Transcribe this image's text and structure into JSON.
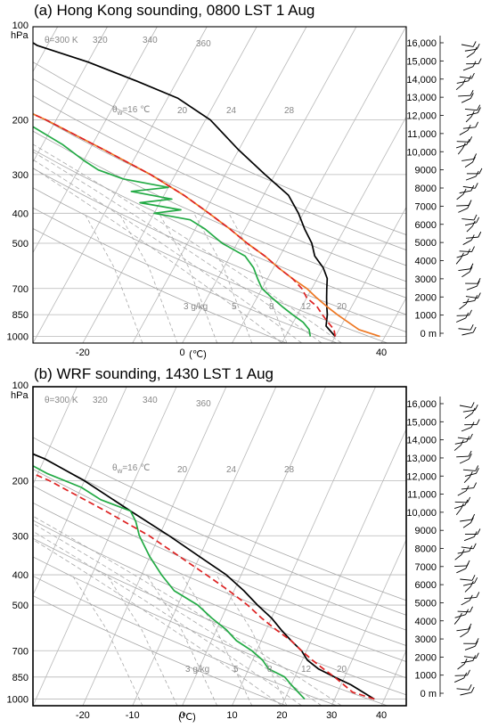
{
  "chart_data": [
    {
      "type": "line",
      "title": "(a) Hong Kong sounding, 0800 LST 1 Aug",
      "pressure_unit": "hPa",
      "xlabel": "(℃)",
      "pressure_ticks": [
        100,
        200,
        300,
        400,
        500,
        700,
        850,
        1000
      ],
      "temperature_ticks": [
        -20,
        0,
        40
      ],
      "xlim": [
        -30,
        45
      ],
      "ylim": [
        1050,
        100
      ],
      "skewed_isotherms": true,
      "grid": true,
      "height_axis": {
        "unit": "m",
        "ticks": [
          "16,000",
          "15,000",
          "14,000",
          "13,000",
          "12,000",
          "11,000",
          "10,000",
          "9000",
          "8000",
          "7000",
          "6000",
          "5000",
          "4000",
          "3000",
          "2000",
          "1000",
          "0 m"
        ]
      },
      "isoline_labels": {
        "dry_adiabats": [
          "θ=300 K",
          "320",
          "340",
          "360"
        ],
        "moist_adiabats_prefix": "θ",
        "moist_adiabats_sub": "w",
        "moist_adiabats": [
          "=16 ℃",
          "20",
          "24",
          "28"
        ],
        "mixing_ratio": [
          "3 g/kg",
          "5",
          "8",
          "12",
          "20"
        ]
      },
      "series": [
        {
          "color": "#000000",
          "style": "solid",
          "points": [
            [
              30,
              1000
            ],
            [
              27,
              925
            ],
            [
              26,
              850
            ],
            [
              25,
              800
            ],
            [
              24,
              750
            ],
            [
              23,
              700
            ],
            [
              22,
              650
            ],
            [
              20,
              600
            ],
            [
              17,
              550
            ],
            [
              15,
              500
            ],
            [
              12,
              450
            ],
            [
              9,
              400
            ],
            [
              5,
              350
            ],
            [
              -2,
              300
            ],
            [
              -10,
              250
            ],
            [
              -19,
              200
            ],
            [
              -28,
              170
            ],
            [
              -38,
              150
            ],
            [
              -50,
              130
            ],
            [
              -62,
              115
            ],
            [
              -70,
              100
            ]
          ]
        },
        {
          "color": "#22aa44",
          "style": "solid",
          "points": [
            [
              25,
              1000
            ],
            [
              24,
              950
            ],
            [
              22,
              900
            ],
            [
              19,
              850
            ],
            [
              16,
              800
            ],
            [
              13,
              750
            ],
            [
              10,
              700
            ],
            [
              8,
              650
            ],
            [
              6,
              600
            ],
            [
              3,
              550
            ],
            [
              -3,
              500
            ],
            [
              -8,
              450
            ],
            [
              -12,
              420
            ],
            [
              -20,
              400
            ],
            [
              -15,
              390
            ],
            [
              -24,
              370
            ],
            [
              -18,
              360
            ],
            [
              -27,
              340
            ],
            [
              -20,
              330
            ],
            [
              -30,
              310
            ],
            [
              -36,
              290
            ],
            [
              -40,
              270
            ],
            [
              -46,
              240
            ],
            [
              -54,
              210
            ],
            [
              -58,
              190
            ],
            [
              -63,
              170
            ],
            [
              -68,
              150
            ],
            [
              -72,
              135
            ],
            [
              -70,
              120
            ],
            [
              -78,
              110
            ],
            [
              -76,
              100
            ]
          ]
        },
        {
          "color": "#ee7722",
          "style": "solid",
          "points": [
            [
              39,
              1000
            ],
            [
              34,
              950
            ],
            [
              28,
              850
            ],
            [
              25,
              800
            ],
            [
              22,
              750
            ],
            [
              19,
              700
            ],
            [
              15,
              650
            ],
            [
              11,
              600
            ],
            [
              7,
              550
            ],
            [
              2,
              500
            ],
            [
              -3,
              450
            ],
            [
              -9,
              400
            ],
            [
              -16,
              350
            ],
            [
              -25,
              300
            ],
            [
              -37,
              250
            ],
            [
              -52,
              200
            ],
            [
              -62,
              175
            ],
            [
              -72,
              155
            ],
            [
              -80,
              140
            ]
          ]
        },
        {
          "color": "#dd2222",
          "style": "dashed",
          "points": [
            [
              30,
              1000
            ],
            [
              29,
              950
            ],
            [
              27,
              900
            ],
            [
              25,
              850
            ],
            [
              23,
              800
            ],
            [
              20,
              750
            ],
            [
              18,
              700
            ],
            [
              15,
              650
            ],
            [
              11,
              600
            ],
            [
              7,
              550
            ],
            [
              2,
              500
            ],
            [
              -3,
              450
            ],
            [
              -9,
              400
            ],
            [
              -16,
              350
            ],
            [
              -25,
              300
            ],
            [
              -37,
              250
            ],
            [
              -52,
              200
            ],
            [
              -62,
              175
            ],
            [
              -72,
              155
            ],
            [
              -80,
              140
            ]
          ]
        }
      ]
    },
    {
      "type": "line",
      "title": "(b) WRF sounding, 1430 LST 1 Aug",
      "pressure_unit": "hPa",
      "xlabel": "(℃)",
      "pressure_ticks": [
        100,
        200,
        300,
        400,
        500,
        700,
        850,
        1000
      ],
      "temperature_ticks": [
        -20,
        -10,
        0,
        10,
        20,
        30,
        40
      ],
      "xlim": [
        -30,
        45
      ],
      "ylim": [
        1050,
        100
      ],
      "skewed_isotherms": true,
      "grid": true,
      "height_axis": {
        "unit": "m",
        "ticks": [
          "16,000",
          "15,000",
          "14,000",
          "13,000",
          "12,000",
          "11,000",
          "10,000",
          "9000",
          "8000",
          "7000",
          "6000",
          "5000",
          "4000",
          "3000",
          "2000",
          "1000",
          "0 m"
        ]
      },
      "isoline_labels": {
        "dry_adiabats": [
          "θ=300 K",
          "320",
          "340",
          "360"
        ],
        "moist_adiabats_prefix": "θ",
        "moist_adiabats_sub": "w",
        "moist_adiabats": [
          "=16 ℃",
          "20",
          "24",
          "28"
        ],
        "mixing_ratio": [
          "3 g/kg",
          "5",
          "8",
          "12",
          "20"
        ]
      },
      "series": [
        {
          "color": "#000000",
          "style": "solid",
          "points": [
            [
              38,
              1000
            ],
            [
              32,
              900
            ],
            [
              28,
              850
            ],
            [
              24,
              800
            ],
            [
              21,
              750
            ],
            [
              19,
              700
            ],
            [
              16,
              650
            ],
            [
              13,
              600
            ],
            [
              10,
              550
            ],
            [
              6,
              500
            ],
            [
              2,
              450
            ],
            [
              -3,
              400
            ],
            [
              -10,
              350
            ],
            [
              -18,
              300
            ],
            [
              -28,
              250
            ],
            [
              -40,
              200
            ],
            [
              -50,
              170
            ],
            [
              -60,
              150
            ],
            [
              -68,
              130
            ],
            [
              -72,
              115
            ],
            [
              -75,
              100
            ]
          ]
        },
        {
          "color": "#22aa44",
          "style": "solid",
          "points": [
            [
              24,
              1000
            ],
            [
              20,
              900
            ],
            [
              18,
              850
            ],
            [
              14,
              800
            ],
            [
              12,
              750
            ],
            [
              9,
              700
            ],
            [
              5,
              650
            ],
            [
              2,
              600
            ],
            [
              -2,
              550
            ],
            [
              -6,
              500
            ],
            [
              -12,
              450
            ],
            [
              -16,
              400
            ],
            [
              -20,
              350
            ],
            [
              -24,
              300
            ],
            [
              -26,
              270
            ],
            [
              -28,
              250
            ],
            [
              -35,
              230
            ],
            [
              -40,
              210
            ],
            [
              -48,
              190
            ],
            [
              -55,
              170
            ],
            [
              -58,
              150
            ],
            [
              -62,
              130
            ],
            [
              -68,
              115
            ],
            [
              -75,
              100
            ]
          ]
        },
        {
          "color": "#dd2222",
          "style": "dashed",
          "points": [
            [
              38,
              1000
            ],
            [
              33,
              950
            ],
            [
              28,
              850
            ],
            [
              25,
              800
            ],
            [
              22,
              750
            ],
            [
              19,
              700
            ],
            [
              16,
              650
            ],
            [
              12,
              600
            ],
            [
              8,
              550
            ],
            [
              4,
              500
            ],
            [
              -1,
              450
            ],
            [
              -7,
              400
            ],
            [
              -14,
              350
            ],
            [
              -22,
              300
            ],
            [
              -33,
              250
            ],
            [
              -47,
              200
            ],
            [
              -57,
              175
            ],
            [
              -67,
              155
            ],
            [
              -77,
              140
            ]
          ]
        }
      ]
    }
  ]
}
